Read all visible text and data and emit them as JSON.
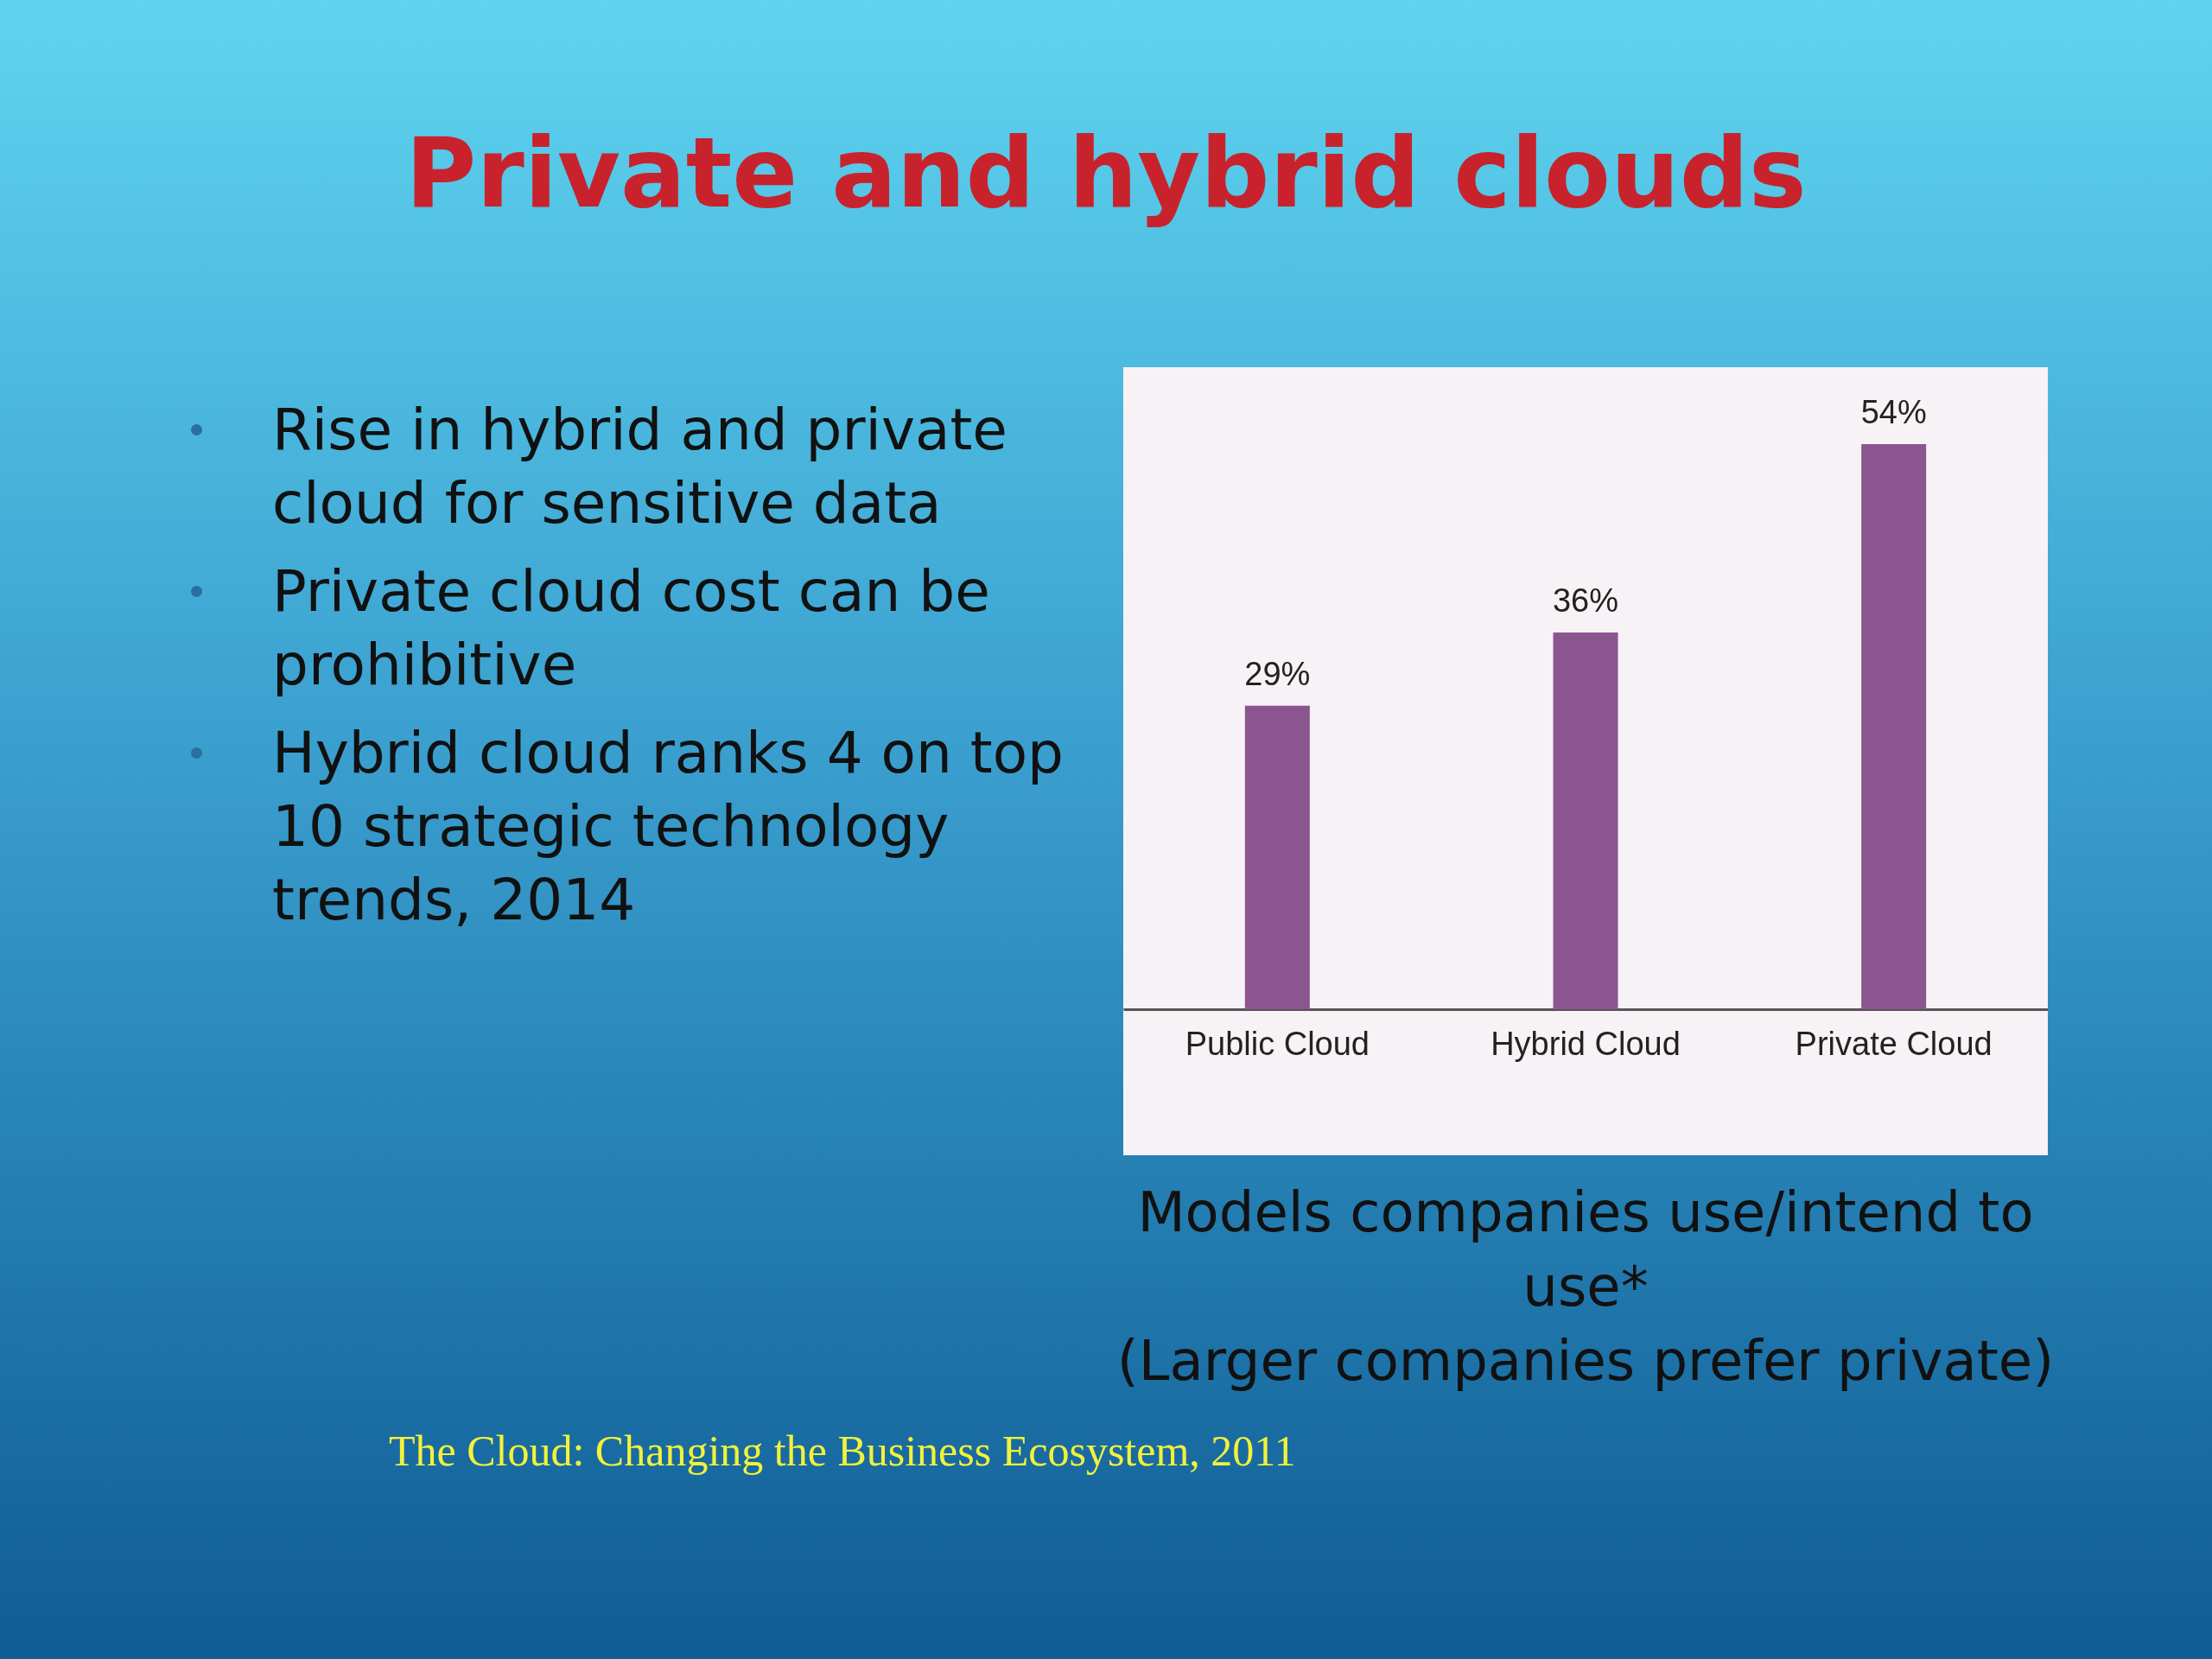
{
  "chart_data": {
    "type": "bar",
    "title": "Private and hybrid clouds",
    "categories": [
      "Public Cloud",
      "Hybrid Cloud",
      "Private Cloud"
    ],
    "values": [
      29,
      36,
      54
    ],
    "value_labels": [
      "29%",
      "36%",
      "54%"
    ],
    "color": "#8b5590",
    "annotations": [
      "Rise in hybrid and private cloud for sensitive data",
      "Private cloud cost can be prohibitive",
      "Hybrid cloud ranks 4 on top 10 strategic technology trends, 2014",
      "Models companies use/intend to use*",
      "(Larger companies prefer private)",
      "The Cloud: Changing the Business Ecosystem, 2011"
    ]
  }
}
